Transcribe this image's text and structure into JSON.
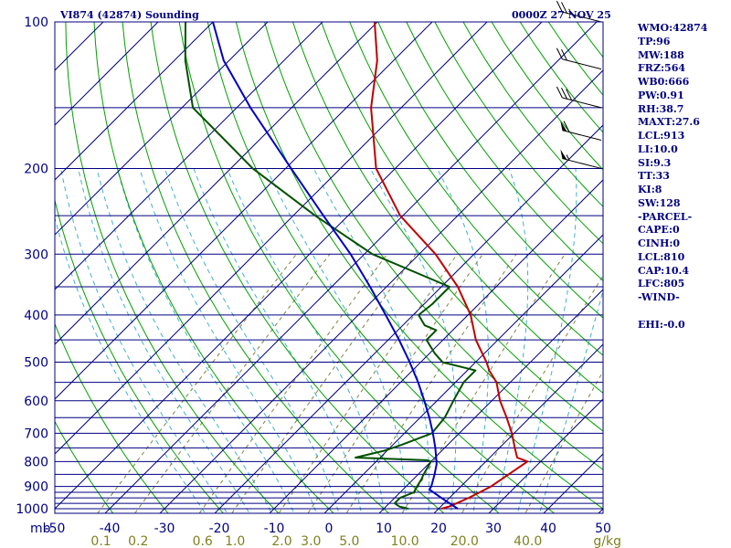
{
  "header": {
    "station": "VI874 (42874) Sounding",
    "time": "0000Z 27 NOV 25"
  },
  "stats": [
    "WMO:42874",
    "TP:96",
    "MW:188",
    "FRZ:564",
    "WB0:666",
    "PW:0.91",
    "RH:38.7",
    "MAXT:27.6",
    "LCL:913",
    "LI:10.0",
    "SI:9.3",
    "TT:33",
    "KI:8",
    "SW:128",
    "-PARCEL-",
    "CAPE:0",
    "CINH:0",
    "LCL:810",
    "CAP:10.4",
    "LFC:805",
    "-WIND-",
    "",
    "EHI:-0.0"
  ],
  "colors": {
    "isobar": "#000080",
    "isotherm": "#000080",
    "dry_adiabat": "#00a000",
    "moist_adiabat": "#40b0d0",
    "mixing_ratio": "#808040",
    "temperature": "#c00000",
    "dewpoint": "#005000",
    "parcel": "#0000c0",
    "text": "#000080",
    "mixing_label": "#808020"
  },
  "chart_data": {
    "type": "line",
    "title": "VI874 (42874) Sounding",
    "subtitle": "0000Z 27 NOV 25",
    "xlabel": "",
    "ylabel": "mb",
    "x_unit_label": "g/kg",
    "xlim": [
      -50,
      50
    ],
    "pressure_range": [
      1000,
      100
    ],
    "log_pressure_axis": true,
    "skew_deg": 45,
    "pressure_tick_labels": [
      "100",
      "200",
      "300",
      "400",
      "500",
      "600",
      "700",
      "800",
      "900",
      "1000"
    ],
    "temperature_tick_labels": [
      "-50",
      "-40",
      "-30",
      "-20",
      "-10",
      "0",
      "10",
      "20",
      "30",
      "40",
      "50"
    ],
    "mixing_ratio_tick_labels": [
      "0.1",
      "0.2",
      "0.6",
      "1.0",
      "2.0",
      "3.0",
      "5.0",
      "10.0",
      "20.0",
      "40.0"
    ],
    "isobars_hPa": [
      1000,
      975,
      950,
      925,
      900,
      850,
      800,
      750,
      700,
      650,
      600,
      550,
      500,
      450,
      400,
      350,
      300,
      250,
      200,
      150,
      100
    ],
    "series": [
      {
        "name": "Temperature",
        "pressure": [
          1000,
          990,
          975,
          950,
          925,
          900,
          850,
          800,
          785,
          750,
          700,
          650,
          600,
          550,
          520,
          500,
          450,
          400,
          350,
          300,
          250,
          200,
          150,
          120,
          100
        ],
        "values": [
          20.5,
          21.5,
          22.3,
          23.5,
          24.5,
          25.5,
          26.5,
          27.6,
          25.0,
          22.8,
          19.6,
          15.8,
          11.5,
          7.5,
          4.0,
          2.0,
          -4.0,
          -9.5,
          -17.0,
          -27.0,
          -40.5,
          -53.5,
          -65.5,
          -73.0,
          -80.5
        ]
      },
      {
        "name": "Dewpoint",
        "pressure": [
          1000,
          990,
          975,
          950,
          925,
          900,
          870,
          850,
          800,
          795,
          785,
          760,
          740,
          700,
          650,
          600,
          550,
          520,
          500,
          480,
          450,
          430,
          420,
          400,
          380,
          350,
          300,
          250,
          200,
          150,
          120,
          100
        ],
        "values": [
          14.5,
          12.5,
          11.0,
          11.0,
          12.5,
          12.0,
          11.5,
          11.0,
          10.0,
          9.0,
          -4.5,
          -0.5,
          1.5,
          5.0,
          4.5,
          3.0,
          1.5,
          1.5,
          -6.0,
          -9.0,
          -13.0,
          -13.0,
          -16.0,
          -19.0,
          -18.5,
          -18.5,
          -38.5,
          -56.0,
          -76.0,
          -98.0,
          -108.0,
          -115.0
        ]
      },
      {
        "name": "Parcel",
        "pressure": [
          1000,
          950,
          913,
          900,
          850,
          810,
          800,
          750,
          700,
          650,
          600,
          550,
          500,
          450,
          400,
          350,
          300,
          250,
          200,
          150,
          120,
          100
        ],
        "values": [
          23.5,
          18.5,
          14.8,
          14.6,
          13.0,
          11.5,
          11.0,
          8.3,
          5.2,
          1.7,
          -2.3,
          -6.8,
          -12.0,
          -18.0,
          -25.0,
          -33.0,
          -42.5,
          -54.5,
          -69.0,
          -87.5,
          -101.0,
          -110.0
        ]
      }
    ],
    "wind_barbs": [
      {
        "pressure": 100,
        "speed_kt": 25
      },
      {
        "pressure": 125,
        "speed_kt": 20
      },
      {
        "pressure": 150,
        "speed_kt": 30
      },
      {
        "pressure": 175,
        "speed_kt": 60
      },
      {
        "pressure": 200,
        "speed_kt": 55
      }
    ],
    "grid": true,
    "legend": "none"
  }
}
